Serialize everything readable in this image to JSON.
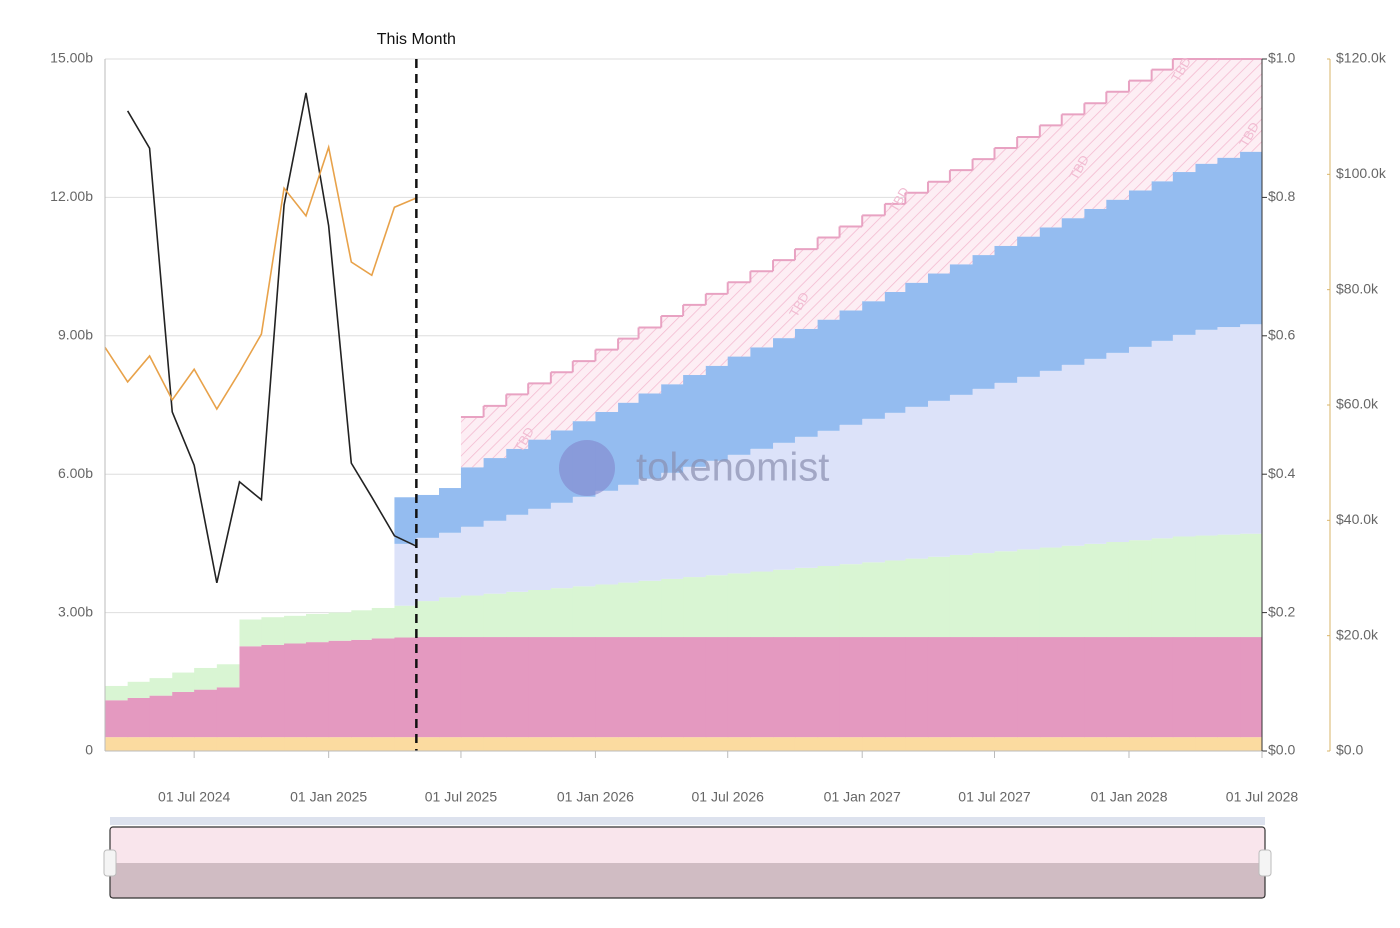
{
  "chart_data": {
    "type": "stacked-step-area",
    "x": [
      "2024-03-01",
      "2024-04-01",
      "2024-05-01",
      "2024-06-01",
      "2024-07-01",
      "2024-08-01",
      "2024-09-01",
      "2024-10-01",
      "2024-11-01",
      "2024-12-01",
      "2025-01-01",
      "2025-02-01",
      "2025-03-01",
      "2025-04-01",
      "2025-05-01",
      "2025-06-01",
      "2025-07-01",
      "2025-08-01",
      "2025-09-01",
      "2025-10-01",
      "2025-11-01",
      "2025-12-01",
      "2026-01-01",
      "2026-02-01",
      "2026-03-01",
      "2026-04-01",
      "2026-05-01",
      "2026-06-01",
      "2026-07-01",
      "2026-08-01",
      "2026-09-01",
      "2026-10-01",
      "2026-11-01",
      "2026-12-01",
      "2027-01-01",
      "2027-02-01",
      "2027-03-01",
      "2027-04-01",
      "2027-05-01",
      "2027-06-01",
      "2027-07-01",
      "2027-08-01",
      "2027-09-01",
      "2027-10-01",
      "2027-11-01",
      "2027-12-01",
      "2028-01-01",
      "2028-02-01",
      "2028-03-01",
      "2028-04-01",
      "2028-05-01",
      "2028-06-01"
    ],
    "xlim": [
      "2024-03-01",
      "2028-07-01"
    ],
    "xticks": [
      {
        "value": "2024-07-01",
        "label": "01 Jul 2024"
      },
      {
        "value": "2025-01-01",
        "label": "01 Jan 2025"
      },
      {
        "value": "2025-07-01",
        "label": "01 Jul 2025"
      },
      {
        "value": "2026-01-01",
        "label": "01 Jan 2026"
      },
      {
        "value": "2026-07-01",
        "label": "01 Jul 2026"
      },
      {
        "value": "2027-01-01",
        "label": "01 Jan 2027"
      },
      {
        "value": "2027-07-01",
        "label": "01 Jul 2027"
      },
      {
        "value": "2028-01-01",
        "label": "01 Jan 2028"
      },
      {
        "value": "2028-07-01",
        "label": "01 Jul 2028"
      }
    ],
    "ylim": [
      0,
      15
    ],
    "yticks": [
      0,
      {
        "value": 3,
        "label": "3.00b"
      },
      {
        "value": 6,
        "label": "6.00b"
      },
      {
        "value": 9,
        "label": "9.00b"
      },
      {
        "value": 12,
        "label": "12.00b"
      },
      {
        "value": 15,
        "label": "15.00b"
      }
    ],
    "y2lim": [
      0,
      1
    ],
    "y2ticks": [
      {
        "value": 0,
        "label": "$0.0"
      },
      {
        "value": 0.2,
        "label": "$0.2"
      },
      {
        "value": 0.4,
        "label": "$0.4"
      },
      {
        "value": 0.6,
        "label": "$0.6"
      },
      {
        "value": 0.8,
        "label": "$0.8"
      },
      {
        "value": 1,
        "label": "$1.0"
      }
    ],
    "y3lim": [
      0,
      120000
    ],
    "y3ticks": [
      {
        "value": 0,
        "label": "$0.0"
      },
      {
        "value": 20000,
        "label": "$20.0k"
      },
      {
        "value": 40000,
        "label": "$40.0k"
      },
      {
        "value": 60000,
        "label": "$60.0k"
      },
      {
        "value": 80000,
        "label": "$80.0k"
      },
      {
        "value": 100000,
        "label": "$100.0k"
      },
      {
        "value": 120000,
        "label": "$120.0k"
      }
    ],
    "grid": true,
    "series": [
      {
        "color": "#fbdba0",
        "values": [
          0.3,
          0.3,
          0.3,
          0.3,
          0.3,
          0.3,
          0.3,
          0.3,
          0.3,
          0.3,
          0.3,
          0.3,
          0.3,
          0.3,
          0.3,
          0.3,
          0.3,
          0.3,
          0.3,
          0.3,
          0.3,
          0.3,
          0.3,
          0.3,
          0.3,
          0.3,
          0.3,
          0.3,
          0.3,
          0.3,
          0.3,
          0.3,
          0.3,
          0.3,
          0.3,
          0.3,
          0.3,
          0.3,
          0.3,
          0.3,
          0.3,
          0.3,
          0.3,
          0.3,
          0.3,
          0.3,
          0.3,
          0.3,
          0.3,
          0.3,
          0.3,
          0.3
        ]
      },
      {
        "color": "#e499c0",
        "values": [
          0.8,
          0.85,
          0.9,
          0.98,
          1.03,
          1.08,
          1.97,
          2.0,
          2.03,
          2.06,
          2.09,
          2.11,
          2.14,
          2.16,
          2.17,
          2.17,
          2.17,
          2.17,
          2.17,
          2.17,
          2.17,
          2.17,
          2.17,
          2.17,
          2.17,
          2.17,
          2.17,
          2.17,
          2.17,
          2.17,
          2.17,
          2.17,
          2.17,
          2.17,
          2.17,
          2.17,
          2.17,
          2.17,
          2.17,
          2.17,
          2.17,
          2.17,
          2.17,
          2.17,
          2.17,
          2.17,
          2.17,
          2.17,
          2.17,
          2.17,
          2.17,
          2.17
        ]
      },
      {
        "color": "#d9f5d3",
        "values": [
          0.31,
          0.35,
          0.38,
          0.42,
          0.47,
          0.5,
          0.58,
          0.6,
          0.6,
          0.61,
          0.61,
          0.64,
          0.66,
          0.69,
          0.78,
          0.86,
          0.9,
          0.94,
          0.98,
          1.02,
          1.06,
          1.1,
          1.14,
          1.18,
          1.22,
          1.26,
          1.3,
          1.34,
          1.38,
          1.42,
          1.46,
          1.5,
          1.54,
          1.58,
          1.62,
          1.66,
          1.7,
          1.74,
          1.78,
          1.82,
          1.86,
          1.9,
          1.94,
          1.98,
          2.02,
          2.06,
          2.1,
          2.14,
          2.18,
          2.2,
          2.22,
          2.24
        ]
      },
      {
        "color": "#dce2f9",
        "values": [
          null,
          null,
          null,
          null,
          null,
          null,
          null,
          null,
          null,
          null,
          null,
          null,
          null,
          1.34,
          1.37,
          1.4,
          1.49,
          1.58,
          1.67,
          1.76,
          1.85,
          1.94,
          2.03,
          2.12,
          2.21,
          2.3,
          2.39,
          2.48,
          2.57,
          2.66,
          2.75,
          2.84,
          2.93,
          3.02,
          3.11,
          3.2,
          3.29,
          3.38,
          3.47,
          3.56,
          3.65,
          3.74,
          3.83,
          3.92,
          4.01,
          4.1,
          4.19,
          4.28,
          4.37,
          4.46,
          4.5,
          4.54
        ]
      },
      {
        "color": "#94bcf0",
        "values": [
          null,
          null,
          null,
          null,
          null,
          null,
          null,
          null,
          null,
          null,
          null,
          null,
          null,
          1.01,
          0.93,
          0.97,
          1.29,
          1.36,
          1.43,
          1.5,
          1.57,
          1.64,
          1.71,
          1.78,
          1.85,
          1.92,
          1.99,
          2.06,
          2.13,
          2.2,
          2.27,
          2.34,
          2.41,
          2.48,
          2.55,
          2.62,
          2.69,
          2.76,
          2.83,
          2.9,
          2.97,
          3.04,
          3.11,
          3.18,
          3.25,
          3.32,
          3.39,
          3.46,
          3.53,
          3.6,
          3.67,
          3.74
        ]
      },
      {
        "color": "#e8a2c2",
        "hatched": true,
        "values": [
          null,
          null,
          null,
          null,
          null,
          null,
          null,
          null,
          null,
          null,
          null,
          null,
          null,
          null,
          null,
          null,
          1.09,
          1.13,
          1.18,
          1.22,
          1.26,
          1.3,
          1.35,
          1.39,
          1.43,
          1.48,
          1.52,
          1.56,
          1.61,
          1.65,
          1.69,
          1.73,
          1.78,
          1.82,
          1.86,
          1.91,
          1.95,
          1.99,
          2.04,
          2.08,
          2.12,
          2.16,
          2.21,
          2.25,
          2.29,
          2.34,
          2.38,
          2.42,
          2.45,
          2.27,
          2.14,
          2.01
        ]
      }
    ],
    "lines": [
      {
        "color": "#222222",
        "axis": "y2",
        "values": [
          null,
          0.925,
          0.871,
          0.49,
          0.413,
          0.243,
          0.389,
          0.363,
          0.789,
          0.951,
          0.759,
          0.416,
          0.367,
          0.311,
          0.296,
          null,
          null,
          null,
          null,
          null,
          null,
          null,
          null,
          null,
          null,
          null,
          null,
          null,
          null,
          null,
          null,
          null,
          null,
          null,
          null,
          null,
          null,
          null,
          null,
          null,
          null,
          null,
          null,
          null,
          null,
          null,
          null,
          null,
          null,
          null,
          null,
          null
        ]
      },
      {
        "color": "#e8a24a",
        "axis": "y3",
        "values": [
          70000,
          64000,
          68500,
          60900,
          66200,
          59300,
          65700,
          72300,
          97600,
          92800,
          104700,
          84800,
          82500,
          94300,
          95900,
          null,
          null,
          null,
          null,
          null,
          null,
          null,
          null,
          null,
          null,
          null,
          null,
          null,
          null,
          null,
          null,
          null,
          null,
          null,
          null,
          null,
          null,
          null,
          null,
          null,
          null,
          null,
          null,
          null,
          null,
          null,
          null,
          null,
          null,
          null,
          null,
          null
        ]
      }
    ],
    "marker": {
      "x": "2025-05-01",
      "label": "This Month"
    },
    "hatch_label": "TBD",
    "watermark": "tokenomist"
  }
}
